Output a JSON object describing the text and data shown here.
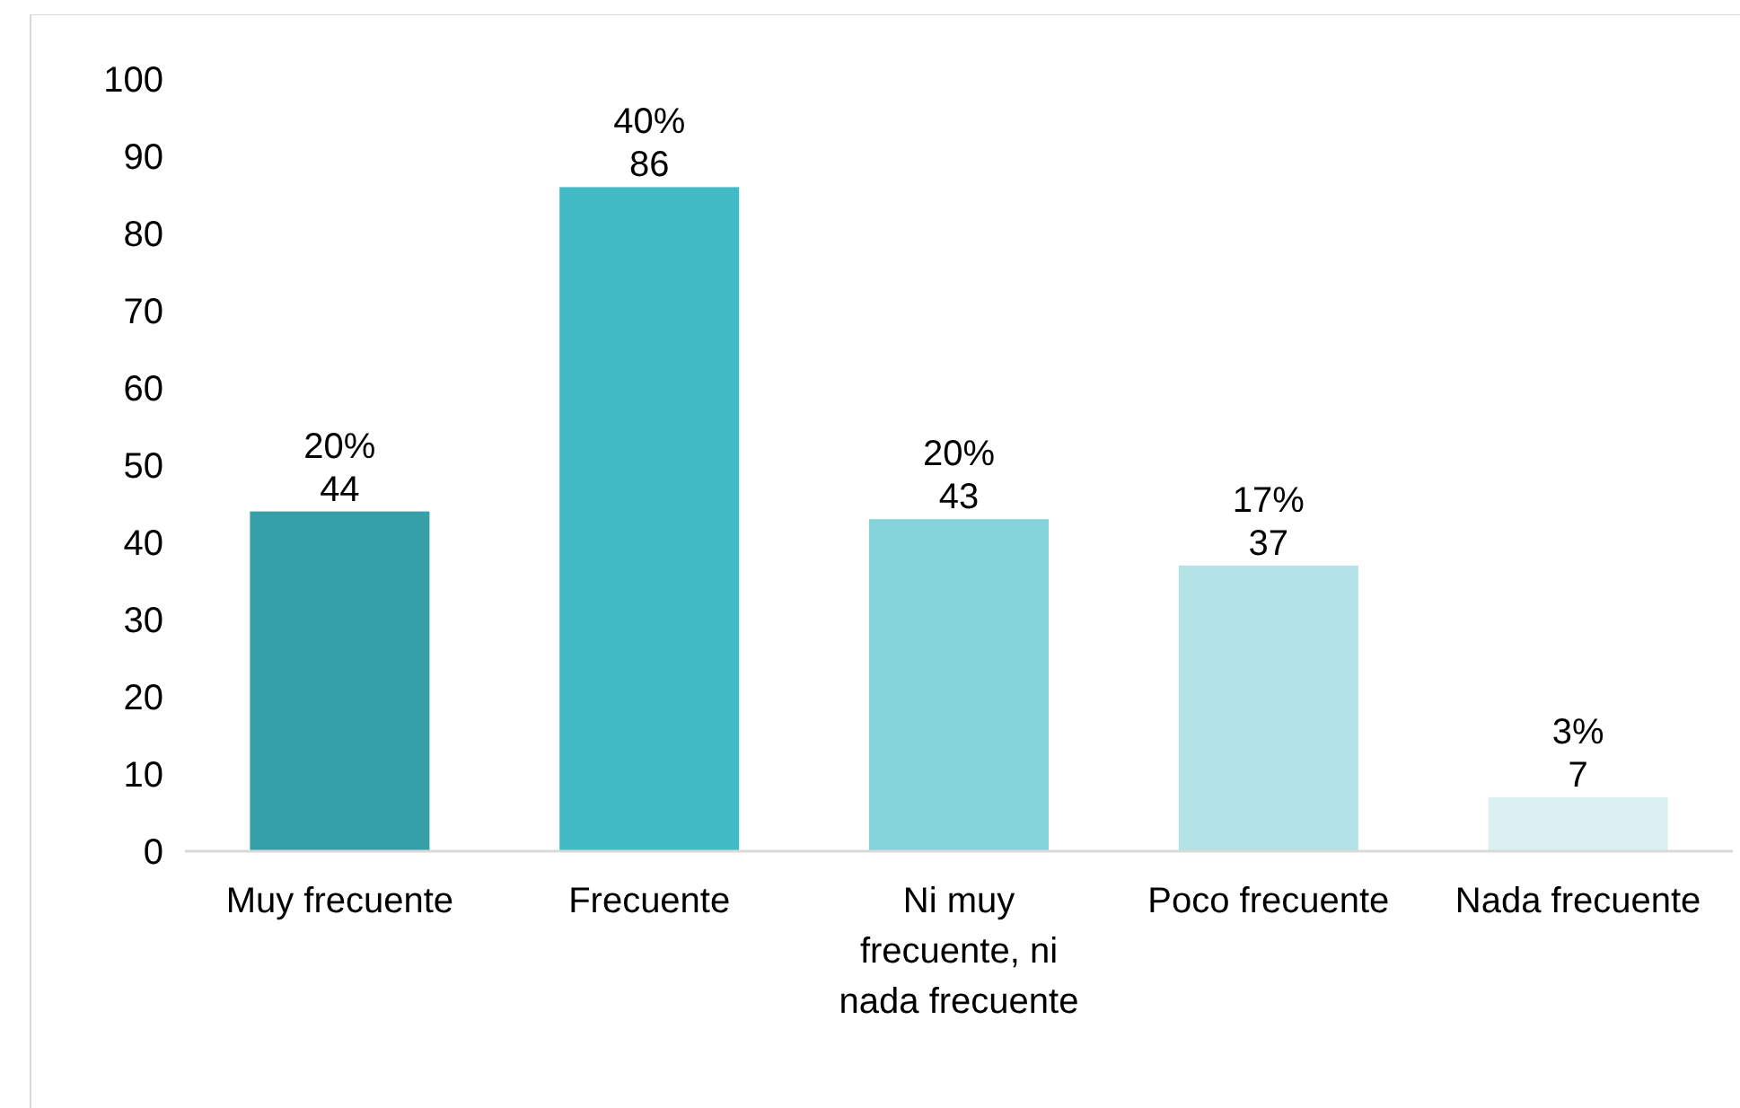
{
  "chart_data": {
    "type": "bar",
    "categories": [
      "Muy frecuente",
      "Frecuente",
      "Ni muy frecuente, ni nada frecuente",
      "Poco frecuente",
      "Nada frecuente"
    ],
    "values": [
      44,
      86,
      43,
      37,
      7
    ],
    "colors": [
      "#35a0a8",
      "#41bbc5",
      "#84d3da",
      "#b3e3e6",
      "#daf0f2"
    ],
    "value_labels": [
      "20%\n44",
      "40%\n86",
      "20%\n43",
      "17%\n37",
      "3%\n7"
    ],
    "ylim": [
      0,
      100
    ],
    "yticks": [
      0,
      10,
      20,
      30,
      40,
      50,
      60,
      70,
      80,
      90,
      100
    ],
    "grid": false
  }
}
